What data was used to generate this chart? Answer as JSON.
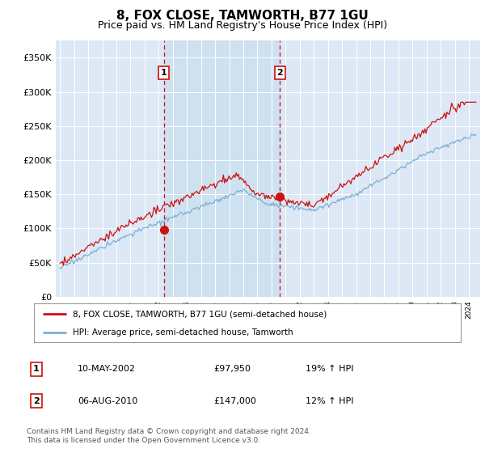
{
  "title": "8, FOX CLOSE, TAMWORTH, B77 1GU",
  "subtitle": "Price paid vs. HM Land Registry's House Price Index (HPI)",
  "title_fontsize": 11,
  "subtitle_fontsize": 9,
  "background_color": "#ffffff",
  "plot_bg_color": "#dce8f5",
  "shaded_region_color": "#cce0f0",
  "legend_entries": [
    "8, FOX CLOSE, TAMWORTH, B77 1GU (semi-detached house)",
    "HPI: Average price, semi-detached house, Tamworth"
  ],
  "table_rows": [
    [
      "1",
      "10-MAY-2002",
      "£97,950",
      "19% ↑ HPI"
    ],
    [
      "2",
      "06-AUG-2010",
      "£147,000",
      "12% ↑ HPI"
    ]
  ],
  "footer_text": "Contains HM Land Registry data © Crown copyright and database right 2024.\nThis data is licensed under the Open Government Licence v3.0.",
  "yticks": [
    0,
    50000,
    100000,
    150000,
    200000,
    250000,
    300000,
    350000
  ],
  "ylim": [
    0,
    375000
  ],
  "xlim_left": 1994.7,
  "xlim_right": 2024.8,
  "sale1_date": 2002.36,
  "sale1_price": 97950,
  "sale2_date": 2010.6,
  "sale2_price": 147000,
  "hpi_color": "#7bafd4",
  "price_color": "#cc1111",
  "vline_color": "#cc1111",
  "marker_color": "#cc1111",
  "grid_color": "#ffffff",
  "outer_bg_color": "#e8eef5"
}
